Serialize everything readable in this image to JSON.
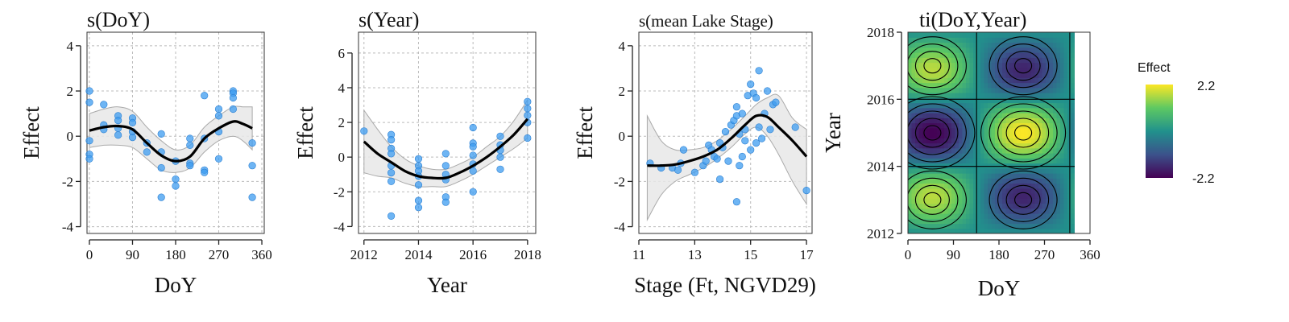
{
  "chart_data": [
    {
      "type": "line",
      "title": "s(DoY)",
      "xlabel": "DoY",
      "ylabel": "Effect",
      "xlim": [
        -5,
        365
      ],
      "ylim": [
        -4.3,
        4.6
      ],
      "xticks": [
        0,
        90,
        180,
        270,
        360
      ],
      "yticks": [
        -4,
        -2,
        0,
        2,
        4
      ],
      "grid": true,
      "fit": {
        "x": [
          0,
          30,
          60,
          90,
          120,
          150,
          180,
          210,
          240,
          270,
          300,
          320,
          340
        ],
        "y": [
          0.25,
          0.4,
          0.45,
          0.3,
          -0.3,
          -0.85,
          -1.1,
          -0.9,
          -0.1,
          0.35,
          0.65,
          0.55,
          0.35
        ]
      },
      "ci_upper": [
        1.0,
        1.2,
        1.3,
        1.1,
        0.4,
        -0.2,
        -0.6,
        -0.4,
        0.4,
        0.9,
        1.3,
        1.3,
        1.3
      ],
      "ci_lower": [
        -0.5,
        -0.4,
        -0.4,
        -0.5,
        -1.0,
        -1.5,
        -1.6,
        -1.4,
        -0.7,
        -0.2,
        0.0,
        -0.2,
        -0.6
      ],
      "points": [
        [
          0,
          2.0
        ],
        [
          0,
          1.5
        ],
        [
          0,
          -0.2
        ],
        [
          0,
          -0.8
        ],
        [
          0,
          -1.0
        ],
        [
          30,
          1.4
        ],
        [
          30,
          0.5
        ],
        [
          30,
          0.3
        ],
        [
          60,
          0.9
        ],
        [
          60,
          0.7
        ],
        [
          60,
          0.35
        ],
        [
          60,
          0.05
        ],
        [
          90,
          0.8
        ],
        [
          90,
          0.6
        ],
        [
          90,
          0.2
        ],
        [
          90,
          -0.05
        ],
        [
          120,
          -0.3
        ],
        [
          120,
          -0.7
        ],
        [
          150,
          0.1
        ],
        [
          150,
          -0.7
        ],
        [
          150,
          -1.4
        ],
        [
          150,
          -2.7
        ],
        [
          180,
          -1.1
        ],
        [
          180,
          -1.9
        ],
        [
          180,
          -2.2
        ],
        [
          210,
          -0.1
        ],
        [
          210,
          -0.4
        ],
        [
          210,
          -1.2
        ],
        [
          210,
          -1.3
        ],
        [
          240,
          1.8
        ],
        [
          240,
          -0.1
        ],
        [
          240,
          -1.5
        ],
        [
          240,
          -1.6
        ],
        [
          270,
          1.2
        ],
        [
          270,
          0.9
        ],
        [
          270,
          0.2
        ],
        [
          270,
          -1.0
        ],
        [
          300,
          2.0
        ],
        [
          300,
          1.9
        ],
        [
          300,
          1.7
        ],
        [
          300,
          1.2
        ],
        [
          340,
          -0.3
        ],
        [
          340,
          -1.3
        ],
        [
          340,
          -2.7
        ]
      ]
    },
    {
      "type": "line",
      "title": "s(Year)",
      "xlabel": "Year",
      "ylabel": "Effect",
      "xlim": [
        2011.8,
        2018.3
      ],
      "ylim": [
        -4.4,
        7.2
      ],
      "xticks": [
        2012,
        2014,
        2016,
        2018
      ],
      "yticks": [
        -4,
        -2,
        0,
        2,
        4,
        6
      ],
      "grid": true,
      "fit": {
        "x": [
          2012,
          2012.5,
          2013,
          2013.5,
          2014,
          2014.5,
          2015,
          2015.5,
          2016,
          2016.5,
          2017,
          2017.5,
          2018
        ],
        "y": [
          0.9,
          0.2,
          -0.3,
          -0.8,
          -1.1,
          -1.2,
          -1.2,
          -0.9,
          -0.5,
          0.0,
          0.6,
          1.3,
          2.2
        ]
      },
      "ci_upper": [
        2.7,
        1.6,
        0.6,
        -0.1,
        -0.5,
        -0.7,
        -0.7,
        -0.4,
        0.0,
        0.6,
        1.2,
        2.1,
        3.3
      ],
      "ci_lower": [
        -0.9,
        -1.1,
        -1.2,
        -1.5,
        -1.7,
        -1.7,
        -1.7,
        -1.4,
        -1.0,
        -0.5,
        0.0,
        0.5,
        1.1
      ],
      "points": [
        [
          2012,
          1.5
        ],
        [
          2013,
          1.3
        ],
        [
          2013,
          1.0
        ],
        [
          2013,
          0.5
        ],
        [
          2013,
          0.2
        ],
        [
          2013,
          -0.5
        ],
        [
          2013,
          -0.9
        ],
        [
          2013,
          -1.4
        ],
        [
          2013,
          -3.4
        ],
        [
          2014,
          -0.1
        ],
        [
          2014,
          -0.5
        ],
        [
          2014,
          -0.8
        ],
        [
          2014,
          -1.1
        ],
        [
          2014,
          -1.6
        ],
        [
          2014,
          -2.5
        ],
        [
          2014,
          -2.9
        ],
        [
          2015,
          0.2
        ],
        [
          2015,
          -0.5
        ],
        [
          2015,
          -1.0
        ],
        [
          2015,
          -1.3
        ],
        [
          2015,
          -2.3
        ],
        [
          2015,
          -2.6
        ],
        [
          2016,
          1.7
        ],
        [
          2016,
          0.8
        ],
        [
          2016,
          0.6
        ],
        [
          2016,
          0.1
        ],
        [
          2016,
          -0.4
        ],
        [
          2016,
          -0.8
        ],
        [
          2016,
          -2.0
        ],
        [
          2017,
          1.2
        ],
        [
          2017,
          0.7
        ],
        [
          2017,
          0.4
        ],
        [
          2017,
          0.0
        ],
        [
          2017,
          -0.7
        ],
        [
          2018,
          3.2
        ],
        [
          2018,
          2.8
        ],
        [
          2018,
          2.4
        ],
        [
          2018,
          2.0
        ],
        [
          2018,
          1.1
        ]
      ]
    },
    {
      "type": "line",
      "title": "s(mean Lake Stage)",
      "xlabel": "Stage (Ft, NGVD29)",
      "ylabel": "Effect",
      "xlim": [
        11.0,
        17.2
      ],
      "ylim": [
        -4.3,
        4.6
      ],
      "xticks": [
        11,
        13,
        15,
        17
      ],
      "yticks": [
        -4,
        -2,
        0,
        2,
        4
      ],
      "grid": true,
      "fit": {
        "x": [
          11.3,
          11.8,
          12.3,
          12.8,
          13.3,
          13.8,
          14.3,
          14.8,
          15.2,
          15.6,
          16.0,
          16.5,
          17.0
        ],
        "y": [
          -1.3,
          -1.3,
          -1.25,
          -1.1,
          -0.9,
          -0.6,
          -0.1,
          0.5,
          0.9,
          0.85,
          0.4,
          -0.2,
          -0.9
        ]
      },
      "ci_upper": [
        0.9,
        -0.2,
        -0.6,
        -0.6,
        -0.5,
        -0.2,
        0.3,
        0.9,
        1.4,
        1.7,
        1.8,
        0.8,
        0.3
      ],
      "ci_lower": [
        -3.7,
        -2.6,
        -2.0,
        -1.7,
        -1.4,
        -1.0,
        -0.5,
        0.1,
        0.4,
        0.0,
        -0.8,
        -2.0,
        -3.0
      ],
      "points": [
        [
          11.4,
          -1.2
        ],
        [
          11.8,
          -1.4
        ],
        [
          12.2,
          -1.4
        ],
        [
          12.4,
          -1.5
        ],
        [
          12.5,
          -1.2
        ],
        [
          12.6,
          -0.6
        ],
        [
          13.0,
          -1.6
        ],
        [
          13.3,
          -1.3
        ],
        [
          13.4,
          -1.1
        ],
        [
          13.5,
          -0.4
        ],
        [
          13.6,
          -0.6
        ],
        [
          13.7,
          -0.9
        ],
        [
          13.8,
          -1.0
        ],
        [
          13.9,
          -1.9
        ],
        [
          13.9,
          -0.3
        ],
        [
          14.0,
          -0.5
        ],
        [
          14.1,
          0.2
        ],
        [
          14.2,
          -1.1
        ],
        [
          14.3,
          0.5
        ],
        [
          14.4,
          0.7
        ],
        [
          14.5,
          0.9
        ],
        [
          14.5,
          1.3
        ],
        [
          14.6,
          0.1
        ],
        [
          14.6,
          -1.3
        ],
        [
          14.7,
          1.0
        ],
        [
          14.7,
          -0.9
        ],
        [
          14.8,
          -0.2
        ],
        [
          14.8,
          0.3
        ],
        [
          14.9,
          1.8
        ],
        [
          15.0,
          2.3
        ],
        [
          15.0,
          -0.6
        ],
        [
          15.1,
          1.9
        ],
        [
          15.2,
          1.7
        ],
        [
          15.2,
          -0.3
        ],
        [
          15.3,
          0.4
        ],
        [
          15.3,
          2.9
        ],
        [
          15.4,
          -0.1
        ],
        [
          15.5,
          1.0
        ],
        [
          15.6,
          2.0
        ],
        [
          15.7,
          0.3
        ],
        [
          15.8,
          1.4
        ],
        [
          15.9,
          1.5
        ],
        [
          14.5,
          -2.9
        ],
        [
          16.6,
          0.4
        ],
        [
          17.0,
          -2.4
        ]
      ]
    },
    {
      "type": "heatmap",
      "title": "ti(DoY,Year)",
      "xlabel": "DoY",
      "ylabel": "Year",
      "xlim": [
        0,
        340
      ],
      "ylim": [
        2012,
        2018
      ],
      "xticks": [
        0,
        90,
        180,
        270,
        360
      ],
      "yticks": [
        2012,
        2014,
        2016,
        2018
      ],
      "legend_title": "Effect",
      "legend_ticks": [
        "2.2",
        "-2.2"
      ],
      "zlim": [
        -2.2,
        2.2
      ],
      "colors": [
        "#440154",
        "#3b528b",
        "#21918c",
        "#5ec962",
        "#fde725"
      ],
      "peaks": [
        {
          "doy": 50,
          "year": 2015.0,
          "effect": -2.2
        },
        {
          "doy": 50,
          "year": 2013.0,
          "effect": 2.0
        },
        {
          "doy": 50,
          "year": 2017.0,
          "effect": 1.7
        },
        {
          "doy": 235,
          "year": 2015.0,
          "effect": 2.2
        },
        {
          "doy": 235,
          "year": 2013.0,
          "effect": -2.0
        },
        {
          "doy": 235,
          "year": 2017.0,
          "effect": -1.7
        }
      ]
    }
  ]
}
